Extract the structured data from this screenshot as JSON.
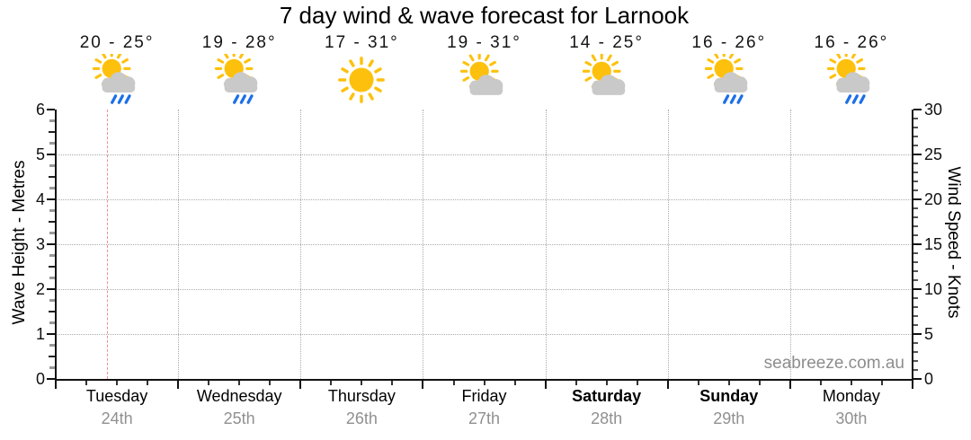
{
  "title": "7 day wind & wave forecast for Larnook",
  "watermark": "seabreeze.com.au",
  "days": [
    {
      "name": "Tuesday",
      "date": "24th",
      "temp": "20 - 25°",
      "condition": "sun-cloud-rain",
      "bold": false
    },
    {
      "name": "Wednesday",
      "date": "25th",
      "temp": "19 - 28°",
      "condition": "sun-cloud-rain",
      "bold": false
    },
    {
      "name": "Thursday",
      "date": "26th",
      "temp": "17 - 31°",
      "condition": "sunny",
      "bold": false
    },
    {
      "name": "Friday",
      "date": "27th",
      "temp": "19 - 31°",
      "condition": "sun-cloud",
      "bold": false
    },
    {
      "name": "Saturday",
      "date": "28th",
      "temp": "14 - 25°",
      "condition": "sun-cloud",
      "bold": true
    },
    {
      "name": "Sunday",
      "date": "29th",
      "temp": "16 - 26°",
      "condition": "sun-cloud-rain",
      "bold": true
    },
    {
      "name": "Monday",
      "date": "30th",
      "temp": "16 - 26°",
      "condition": "sun-cloud-rain",
      "bold": false
    }
  ],
  "left_axis": {
    "label": "Wave Height - Metres",
    "min": 0,
    "max": 6,
    "major_step": 1
  },
  "right_axis": {
    "label": "Wind Speed - Knots",
    "min": 0,
    "max": 30,
    "major_step": 5
  },
  "colors": {
    "sun": "#fdc10d",
    "cloud": "#c9c9c9",
    "rain": "#1d6fe8",
    "grid": "#ababab",
    "now_line": "#f28e8e",
    "date_text": "#909090",
    "watermark_text": "#8d8d8d"
  },
  "chart_data": {
    "type": "line",
    "title": "7 day wind & wave forecast for Larnook",
    "categories": [
      "Tuesday 24th",
      "Wednesday 25th",
      "Thursday 26th",
      "Friday 27th",
      "Saturday 28th",
      "Sunday 29th",
      "Monday 30th"
    ],
    "series": [],
    "temperature_ranges_c": [
      [
        20,
        25
      ],
      [
        19,
        28
      ],
      [
        17,
        31
      ],
      [
        19,
        31
      ],
      [
        14,
        25
      ],
      [
        16,
        26
      ],
      [
        16,
        26
      ]
    ],
    "conditions": [
      "sun-cloud-rain",
      "sun-cloud-rain",
      "sunny",
      "sun-cloud",
      "sun-cloud",
      "sun-cloud-rain",
      "sun-cloud-rain"
    ],
    "left_axis": {
      "label": "Wave Height - Metres",
      "range": [
        0,
        6
      ],
      "ticks": [
        0,
        1,
        2,
        3,
        4,
        5,
        6
      ]
    },
    "right_axis": {
      "label": "Wind Speed - Knots",
      "range": [
        0,
        30
      ],
      "ticks": [
        0,
        5,
        10,
        15,
        20,
        25,
        30
      ]
    },
    "grid": true,
    "legend_position": "none",
    "annotations": {
      "now_marker": "dashed vertical line within Tuesday"
    },
    "watermark": "seabreeze.com.au"
  }
}
